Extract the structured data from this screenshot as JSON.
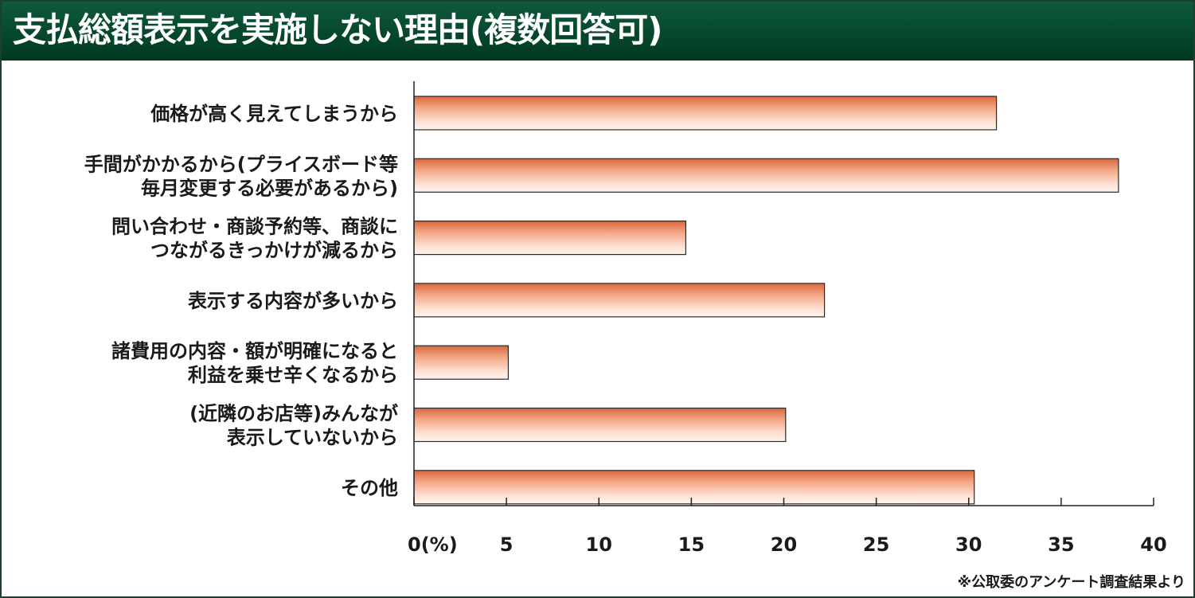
{
  "chart_data": {
    "type": "bar",
    "orientation": "horizontal",
    "title": "支払総額表示を実施しない理由(複数回答可)",
    "categories": [
      [
        "価格が高く見えてしまうから"
      ],
      [
        "手間がかかるから(プライスボード等",
        "毎月変更する必要があるから)"
      ],
      [
        "問い合わせ・商談予約等、商談に",
        "つながるきっかけが減るから"
      ],
      [
        "表示する内容が多いから"
      ],
      [
        "諸費用の内容・額が明確になると",
        "利益を乗せ辛くなるから"
      ],
      [
        "(近隣のお店等)みんなが",
        "表示していないから"
      ],
      [
        "その他"
      ]
    ],
    "values": [
      31.5,
      38.1,
      14.7,
      22.2,
      5.1,
      20.1,
      30.3
    ],
    "xlim": [
      0,
      40
    ],
    "xticks": [
      "0(%)",
      "5",
      "10",
      "15",
      "20",
      "25",
      "30",
      "35",
      "40"
    ],
    "unit": "%",
    "grid": false,
    "source": "※公取委のアンケート調査結果より"
  },
  "colors": {
    "header": "#0e5a3c",
    "bar_dark": "#e07a52",
    "bar_light": "#fff0e8",
    "axis": "#222222"
  }
}
